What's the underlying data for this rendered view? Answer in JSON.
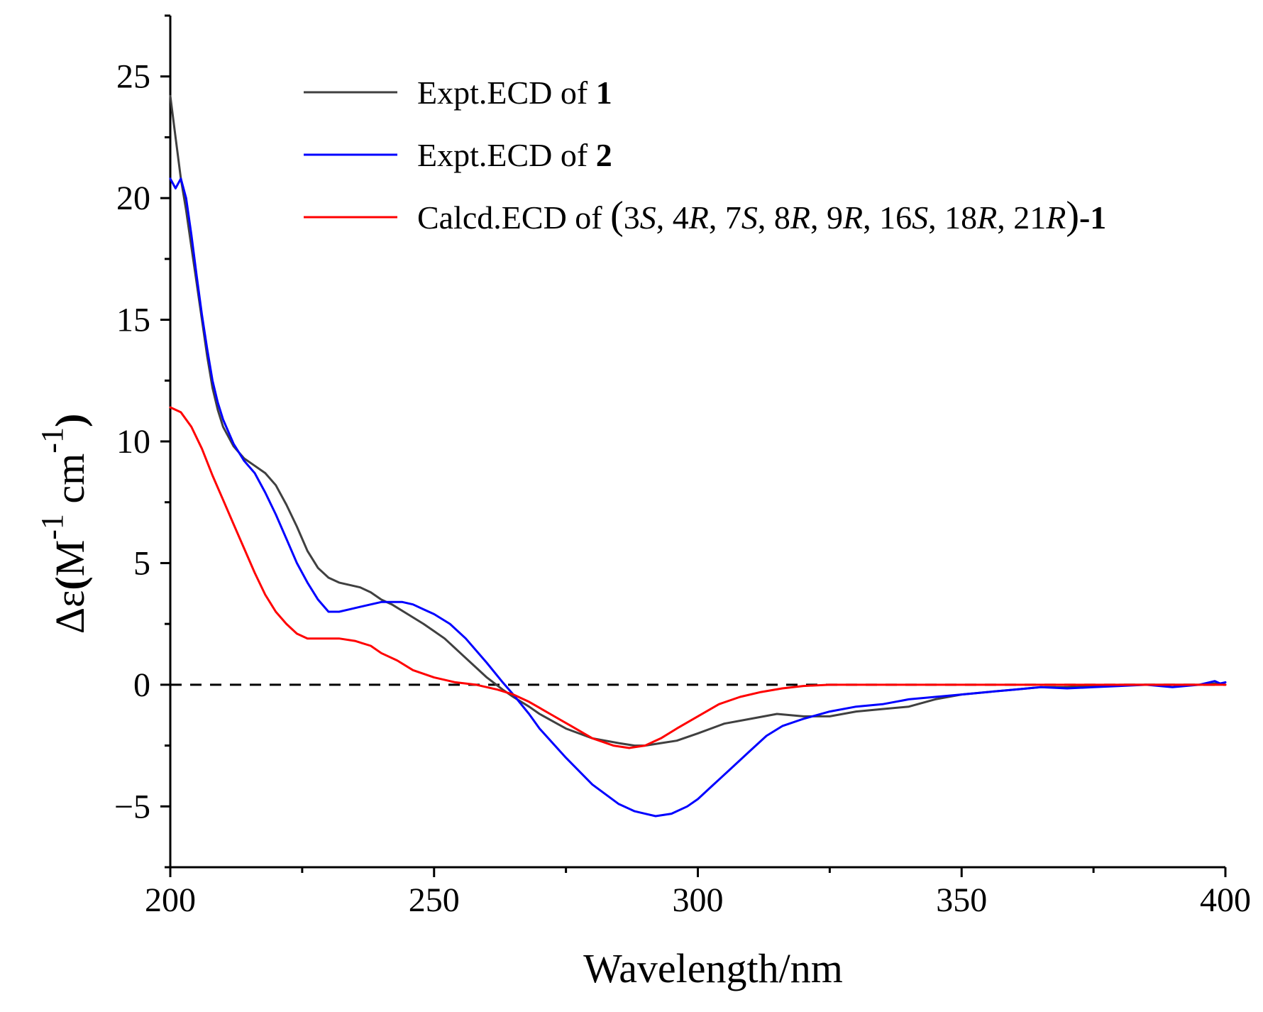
{
  "chart_data": {
    "type": "line",
    "title": "",
    "xlabel": "Wavelength/nm",
    "ylabel": {
      "prefix": "Δε",
      "M": "M",
      "cm": "cm",
      "exp": "-1"
    },
    "xlim": [
      200,
      400
    ],
    "ylim": [
      -7.5,
      27.5
    ],
    "xticks": [
      200,
      250,
      300,
      350,
      400
    ],
    "yticks": [
      -5,
      0,
      5,
      10,
      15,
      20,
      25
    ],
    "zero_line": {
      "y": 0,
      "style": "dashed",
      "color": "#000000"
    },
    "legend": {
      "placement": "top-right",
      "entries": [
        {
          "name": "Expt.ECD of 1",
          "text": "Expt.ECD of ",
          "bold": "1",
          "color": "#404040"
        },
        {
          "name": "Expt.ECD of 2",
          "text": "Expt.ECD of ",
          "bold": "2",
          "color": "#0000ff"
        },
        {
          "name": "Calcd.ECD of (3S, 4R, 7S, 8R, 9R, 16S, 18R, 21R)-1",
          "text": "Calcd.ECD of (3S, 4R, 7S, 8R, 9R, 16S, 18R, 21R)-1",
          "bold": "",
          "color": "#ff0000"
        }
      ]
    },
    "series": [
      {
        "name": "Expt.ECD of 1",
        "color": "#404040",
        "x": [
          200,
          201,
          202,
          203,
          204,
          205,
          206,
          207,
          208,
          209,
          210,
          212,
          214,
          216,
          218,
          220,
          222,
          224,
          226,
          228,
          230,
          232,
          234,
          236,
          238,
          240,
          242,
          245,
          248,
          250,
          252,
          255,
          258,
          260,
          263,
          265,
          268,
          270,
          275,
          280,
          285,
          288,
          290,
          293,
          296,
          300,
          305,
          310,
          315,
          320,
          325,
          330,
          335,
          340,
          345,
          350,
          355,
          360,
          365,
          370,
          375,
          380,
          385,
          390,
          395,
          398,
          400
        ],
        "y": [
          24.2,
          22.5,
          20.8,
          19.5,
          18.0,
          16.5,
          15.0,
          13.5,
          12.2,
          11.3,
          10.6,
          9.8,
          9.3,
          9.0,
          8.7,
          8.2,
          7.4,
          6.5,
          5.5,
          4.8,
          4.4,
          4.2,
          4.1,
          4.0,
          3.8,
          3.5,
          3.3,
          2.9,
          2.5,
          2.2,
          1.9,
          1.3,
          0.7,
          0.3,
          -0.2,
          -0.5,
          -0.9,
          -1.2,
          -1.8,
          -2.2,
          -2.4,
          -2.5,
          -2.5,
          -2.4,
          -2.3,
          -2.0,
          -1.6,
          -1.4,
          -1.2,
          -1.3,
          -1.3,
          -1.1,
          -1.0,
          -0.9,
          -0.6,
          -0.4,
          -0.3,
          -0.2,
          -0.1,
          -0.1,
          -0.05,
          0.0,
          0.0,
          0.0,
          0.0,
          0.05,
          0.0
        ]
      },
      {
        "name": "Expt.ECD of 2",
        "color": "#0000ff",
        "x": [
          200,
          201,
          202,
          203,
          204,
          205,
          206,
          207,
          208,
          209,
          210,
          212,
          214,
          216,
          218,
          220,
          222,
          224,
          226,
          228,
          230,
          232,
          234,
          236,
          238,
          240,
          242,
          244,
          246,
          248,
          250,
          253,
          256,
          260,
          263,
          265,
          268,
          270,
          275,
          280,
          285,
          288,
          290,
          292,
          295,
          298,
          300,
          303,
          306,
          310,
          313,
          316,
          320,
          325,
          330,
          335,
          340,
          345,
          350,
          355,
          360,
          365,
          370,
          375,
          380,
          385,
          390,
          395,
          397,
          398,
          399,
          400
        ],
        "y": [
          20.8,
          20.4,
          20.8,
          20.0,
          18.5,
          16.8,
          15.2,
          13.8,
          12.5,
          11.6,
          10.9,
          9.9,
          9.2,
          8.7,
          7.9,
          7.0,
          6.0,
          5.0,
          4.2,
          3.5,
          3.0,
          3.0,
          3.1,
          3.2,
          3.3,
          3.4,
          3.4,
          3.4,
          3.3,
          3.1,
          2.9,
          2.5,
          1.9,
          0.9,
          0.1,
          -0.4,
          -1.2,
          -1.8,
          -3.0,
          -4.1,
          -4.9,
          -5.2,
          -5.3,
          -5.4,
          -5.3,
          -5.0,
          -4.7,
          -4.1,
          -3.5,
          -2.7,
          -2.1,
          -1.7,
          -1.4,
          -1.1,
          -0.9,
          -0.8,
          -0.6,
          -0.5,
          -0.4,
          -0.3,
          -0.2,
          -0.1,
          -0.15,
          -0.1,
          -0.05,
          0.0,
          -0.1,
          0.0,
          0.1,
          0.15,
          0.05,
          0.1
        ]
      },
      {
        "name": "Calcd.ECD of (3S, 4R, 7S, 8R, 9R, 16S, 18R, 21R)-1",
        "color": "#ff0000",
        "x": [
          200,
          202,
          204,
          206,
          208,
          210,
          212,
          214,
          216,
          218,
          220,
          222,
          224,
          226,
          228,
          230,
          232,
          235,
          238,
          240,
          243,
          246,
          250,
          254,
          258,
          262,
          265,
          268,
          272,
          276,
          280,
          284,
          287,
          290,
          293,
          296,
          300,
          304,
          308,
          312,
          316,
          320,
          325,
          330,
          340,
          350,
          360,
          370,
          380,
          390,
          400
        ],
        "y": [
          11.4,
          11.2,
          10.6,
          9.7,
          8.6,
          7.6,
          6.6,
          5.6,
          4.6,
          3.7,
          3.0,
          2.5,
          2.1,
          1.9,
          1.9,
          1.9,
          1.9,
          1.8,
          1.6,
          1.3,
          1.0,
          0.6,
          0.3,
          0.1,
          0.0,
          -0.2,
          -0.4,
          -0.7,
          -1.2,
          -1.7,
          -2.2,
          -2.5,
          -2.6,
          -2.5,
          -2.2,
          -1.8,
          -1.3,
          -0.8,
          -0.5,
          -0.3,
          -0.15,
          -0.05,
          0.0,
          0.0,
          0.0,
          0.0,
          0.0,
          0.0,
          0.0,
          0.0,
          0.0
        ]
      }
    ]
  }
}
